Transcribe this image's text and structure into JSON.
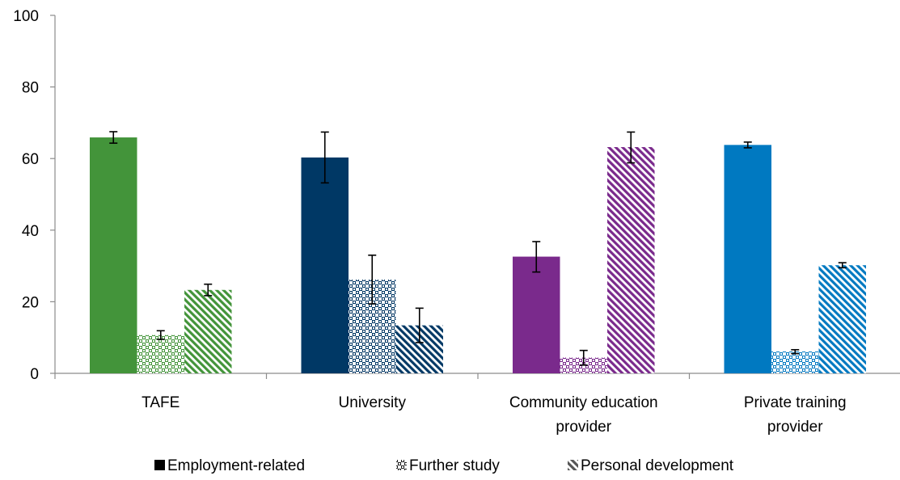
{
  "chart_data": {
    "type": "bar",
    "title": "",
    "xlabel": "",
    "ylabel": "",
    "ylim": [
      0,
      100
    ],
    "yticks": [
      0,
      20,
      40,
      60,
      80,
      100
    ],
    "grid": false,
    "legend_position": "bottom",
    "categories": [
      [
        "TAFE"
      ],
      [
        "University"
      ],
      [
        "Community education",
        "provider"
      ],
      [
        "Private training",
        "provider"
      ]
    ],
    "category_colors": [
      "#43943a",
      "#003865",
      "#7a2a8c",
      "#0079c1"
    ],
    "series": [
      {
        "name": "Employment-related",
        "pattern": "solid",
        "values": [
          65.9,
          60.3,
          32.6,
          63.8
        ],
        "error_low": [
          64.3,
          53.2,
          28.3,
          63.0
        ],
        "error_high": [
          67.5,
          67.4,
          36.8,
          64.6
        ]
      },
      {
        "name": "Further study",
        "pattern": "checker",
        "values": [
          10.7,
          26.2,
          4.4,
          6.1
        ],
        "error_low": [
          9.5,
          19.4,
          2.3,
          5.5
        ],
        "error_high": [
          11.9,
          33.0,
          6.4,
          6.6
        ]
      },
      {
        "name": "Personal development",
        "pattern": "diagonal",
        "values": [
          23.3,
          13.4,
          63.2,
          30.2
        ],
        "error_low": [
          21.7,
          8.6,
          58.8,
          29.5
        ],
        "error_high": [
          24.9,
          18.2,
          67.4,
          30.9
        ]
      }
    ]
  }
}
